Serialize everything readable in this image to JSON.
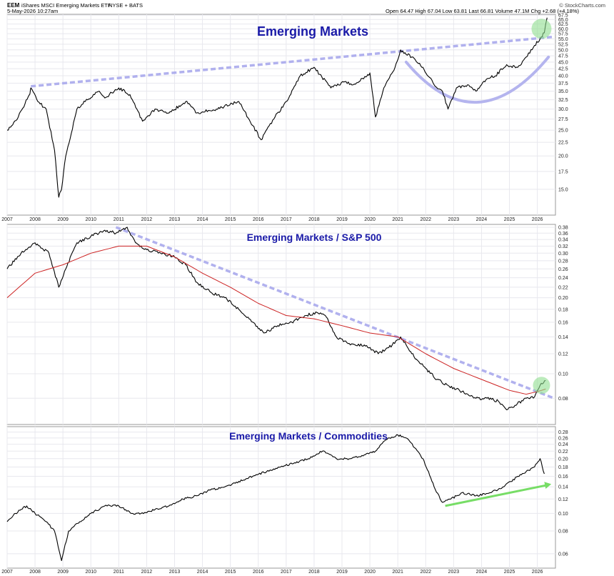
{
  "header": {
    "symbol": "EEM",
    "name": "iShares MSCI Emerging Markets ETF",
    "exchange": "NYSE + BATS",
    "date": "5-May-2026 10:27am",
    "quote": "Open 64.47  High 67.04  Low 63.81  Last 66.81  Volume 47.1M  Chg +2.68 (+4.18%)",
    "source": "© StockCharts.com"
  },
  "colors": {
    "price_line": "#000000",
    "moving_average": "#cc2222",
    "trendline": "#a8a8ec",
    "arc": "#b4b4ee",
    "highlight": "#90dd90",
    "support_arrow": "#77dd66",
    "title": "#1a1aa8",
    "grid": "#e8e8ee"
  },
  "chart_data": [
    {
      "type": "line",
      "title": "Emerging Markets",
      "x_range": [
        2007,
        2026.65
      ],
      "ylim": [
        12,
        68
      ],
      "y_scale": "log",
      "y_ticks": [
        "15.0",
        "17.5",
        "20.0",
        "22.5",
        "25.0",
        "27.5",
        "30.0",
        "32.5",
        "35.0",
        "37.5",
        "40.0",
        "42.5",
        "45.0",
        "47.5",
        "50.0",
        "52.5",
        "55.0",
        "57.5",
        "60.0",
        "62.5",
        "65.0",
        "67.5"
      ],
      "series": [
        {
          "x": [
            2007.0,
            2007.4,
            2007.8,
            2007.85,
            2008.1,
            2008.4,
            2008.7,
            2008.85,
            2008.95,
            2009.1,
            2009.5,
            2009.8,
            2010.3,
            2010.5,
            2011.0,
            2011.4,
            2011.65,
            2011.85,
            2012.3,
            2012.8,
            2013.4,
            2013.8,
            2014.5,
            2015.3,
            2015.8,
            2016.1,
            2016.6,
            2017.0,
            2017.5,
            2018.0,
            2018.6,
            2019.1,
            2019.4,
            2019.9,
            2020.0,
            2020.2,
            2020.5,
            2020.9,
            2021.1,
            2021.5,
            2021.9,
            2022.3,
            2022.6,
            2022.8,
            2023.1,
            2023.5,
            2023.8,
            2024.2,
            2024.5,
            2024.9,
            2025.3,
            2025.6,
            2025.9,
            2026.1,
            2026.25,
            2026.35
          ],
          "y": [
            25,
            28,
            34,
            36,
            32,
            30,
            21,
            14,
            15,
            20,
            30,
            32,
            35,
            33,
            36,
            34,
            30,
            27,
            30,
            29,
            32,
            29,
            30,
            32,
            26,
            23,
            28,
            32,
            40,
            43,
            36,
            38,
            37,
            40,
            41,
            28,
            36,
            43,
            50,
            47,
            43,
            37,
            35,
            30,
            36,
            37,
            35,
            39,
            40,
            44,
            43,
            47,
            52,
            55,
            58,
            66
          ]
        }
      ],
      "trendlines": [
        {
          "from": {
            "x": 2007.85,
            "y": 36.5
          },
          "to": {
            "x": 2026.6,
            "y": 56
          }
        }
      ]
    },
    {
      "type": "line",
      "title": "Emerging Markets / S&P 500",
      "x_range": [
        2007,
        2026.65
      ],
      "ylim": [
        0.063,
        0.39
      ],
      "y_scale": "log",
      "y_ticks": [
        "0.08",
        "0.10",
        "0.12",
        "0.14",
        "0.16",
        "0.18",
        "0.20",
        "0.22",
        "0.24",
        "0.26",
        "0.28",
        "0.30",
        "0.32",
        "0.34",
        "0.36",
        "0.38"
      ],
      "series": [
        {
          "name": "EEM:SPX",
          "x": [
            2007.0,
            2007.5,
            2008.0,
            2008.5,
            2008.85,
            2009.1,
            2009.5,
            2010.0,
            2010.5,
            2010.9,
            2011.3,
            2011.6,
            2012.0,
            2012.5,
            2013.0,
            2013.4,
            2013.8,
            2014.3,
            2014.8,
            2015.3,
            2015.8,
            2016.2,
            2016.7,
            2017.2,
            2017.7,
            2018.1,
            2018.4,
            2018.8,
            2019.3,
            2019.8,
            2020.3,
            2020.8,
            2021.1,
            2021.5,
            2022.0,
            2022.4,
            2022.8,
            2023.3,
            2023.8,
            2024.2,
            2024.6,
            2024.9,
            2025.2,
            2025.6,
            2025.9,
            2026.1,
            2026.3
          ],
          "y": [
            0.26,
            0.3,
            0.33,
            0.3,
            0.22,
            0.26,
            0.33,
            0.35,
            0.37,
            0.36,
            0.38,
            0.33,
            0.31,
            0.3,
            0.29,
            0.27,
            0.23,
            0.21,
            0.2,
            0.18,
            0.16,
            0.145,
            0.155,
            0.16,
            0.17,
            0.175,
            0.17,
            0.14,
            0.13,
            0.13,
            0.12,
            0.13,
            0.14,
            0.12,
            0.105,
            0.095,
            0.09,
            0.085,
            0.08,
            0.08,
            0.078,
            0.072,
            0.075,
            0.08,
            0.081,
            0.09,
            0.094
          ]
        },
        {
          "name": "Moving average",
          "x": [
            2007.0,
            2008.0,
            2009.0,
            2010.0,
            2011.0,
            2012.0,
            2013.0,
            2014.0,
            2015.0,
            2016.0,
            2017.0,
            2018.0,
            2019.0,
            2020.0,
            2021.0,
            2022.0,
            2023.0,
            2024.0,
            2025.0,
            2025.6,
            2026.0,
            2026.3
          ],
          "y": [
            0.2,
            0.25,
            0.27,
            0.3,
            0.32,
            0.32,
            0.29,
            0.25,
            0.22,
            0.19,
            0.17,
            0.165,
            0.155,
            0.145,
            0.14,
            0.12,
            0.105,
            0.095,
            0.086,
            0.083,
            0.085,
            0.087
          ]
        }
      ],
      "trendlines": [
        {
          "from": {
            "x": 2010.9,
            "y": 0.38
          },
          "to": {
            "x": 2026.6,
            "y": 0.08
          }
        }
      ]
    },
    {
      "type": "line",
      "title": "Emerging Markets / Commodities",
      "x_range": [
        2007,
        2026.65
      ],
      "ylim": [
        0.05,
        0.3
      ],
      "y_scale": "log",
      "y_ticks": [
        "0.06",
        "0.08",
        "0.10",
        "0.12",
        "0.14",
        "0.16",
        "0.18",
        "0.20",
        "0.22",
        "0.24",
        "0.26",
        "0.28"
      ],
      "series": [
        {
          "x": [
            2007.0,
            2007.3,
            2007.7,
            2008.0,
            2008.4,
            2008.7,
            2008.95,
            2009.2,
            2009.6,
            2010.0,
            2010.5,
            2011.0,
            2011.5,
            2011.8,
            2012.3,
            2012.8,
            2013.3,
            2013.8,
            2014.3,
            2014.8,
            2015.3,
            2015.8,
            2016.3,
            2016.8,
            2017.3,
            2017.8,
            2018.3,
            2018.8,
            2019.3,
            2019.8,
            2020.2,
            2020.4,
            2020.7,
            2021.0,
            2021.3,
            2021.6,
            2021.9,
            2022.1,
            2022.3,
            2022.6,
            2022.9,
            2023.3,
            2023.8,
            2024.3,
            2024.8,
            2025.3,
            2025.6,
            2025.9,
            2026.1,
            2026.25
          ],
          "y": [
            0.09,
            0.1,
            0.11,
            0.1,
            0.09,
            0.08,
            0.055,
            0.08,
            0.09,
            0.1,
            0.11,
            0.11,
            0.1,
            0.1,
            0.105,
            0.11,
            0.12,
            0.125,
            0.135,
            0.14,
            0.15,
            0.16,
            0.17,
            0.18,
            0.19,
            0.2,
            0.22,
            0.2,
            0.2,
            0.21,
            0.22,
            0.24,
            0.26,
            0.27,
            0.26,
            0.23,
            0.2,
            0.17,
            0.14,
            0.115,
            0.12,
            0.13,
            0.125,
            0.13,
            0.14,
            0.16,
            0.17,
            0.18,
            0.2,
            0.165
          ]
        }
      ],
      "trendlines": [
        {
          "from": {
            "x": 2022.7,
            "y": 0.11
          },
          "to": {
            "x": 2026.6,
            "y": 0.145
          }
        }
      ]
    }
  ],
  "x_ticks": [
    "2007",
    "2008",
    "2009",
    "2010",
    "2011",
    "2012",
    "2013",
    "2014",
    "2015",
    "2016",
    "2017",
    "2018",
    "2019",
    "2020",
    "2021",
    "2022",
    "2023",
    "2024",
    "2025",
    "2026"
  ]
}
